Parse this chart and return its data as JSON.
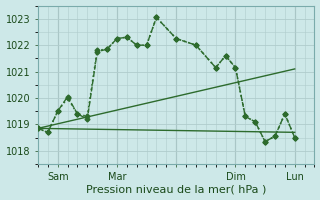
{
  "background_color": "#cde8e8",
  "grid_color": "#b0cccc",
  "line_color": "#2d6b2d",
  "xlim": [
    0,
    14
  ],
  "ylim": [
    1017.5,
    1023.5
  ],
  "yticks": [
    1018,
    1019,
    1020,
    1021,
    1022,
    1023
  ],
  "xtick_positions": [
    1,
    4,
    7,
    10,
    13
  ],
  "xtick_labels": [
    "Sam",
    "Mar",
    "",
    "Dim",
    "Lun"
  ],
  "xlabel": "Pression niveau de la mer( hPa )",
  "series": [
    {
      "x": [
        0.0,
        0.5,
        1.0,
        1.5,
        2.0,
        2.5,
        3.0,
        3.5,
        4.0,
        4.5,
        5.0,
        5.5,
        6.0,
        7.0,
        8.0,
        9.0,
        9.5,
        10.0,
        10.5,
        11.0,
        11.5,
        12.0,
        12.5,
        13.0
      ],
      "y": [
        1018.85,
        1018.7,
        1019.5,
        1020.0,
        1019.4,
        1019.3,
        1021.8,
        1021.85,
        1022.25,
        1022.3,
        1022.0,
        1022.0,
        1023.05,
        1022.25,
        1022.0,
        1021.15,
        1021.6,
        1021.15,
        1019.3,
        1019.1,
        1018.35,
        1018.55,
        1019.4,
        1018.5
      ],
      "style": ":",
      "marker": "D",
      "markersize": 2.5,
      "linewidth": 1.2
    },
    {
      "x": [
        0.0,
        0.5,
        1.0,
        1.5,
        2.0,
        2.5,
        3.0,
        3.5,
        4.0,
        4.5,
        5.0,
        5.5,
        6.0,
        7.0,
        8.0,
        9.0,
        9.5,
        10.0,
        10.5,
        11.0,
        11.5,
        12.0,
        12.5,
        13.0
      ],
      "y": [
        1018.85,
        1018.7,
        1019.5,
        1020.05,
        1019.4,
        1019.2,
        1021.75,
        1021.85,
        1022.25,
        1022.3,
        1022.0,
        1022.0,
        1023.05,
        1022.25,
        1022.0,
        1021.15,
        1021.6,
        1021.15,
        1019.3,
        1019.1,
        1018.35,
        1018.55,
        1019.4,
        1018.5
      ],
      "style": "--",
      "marker": "D",
      "markersize": 2.5,
      "linewidth": 1.0
    },
    {
      "x": [
        0.0,
        13.0
      ],
      "y": [
        1018.85,
        1021.1
      ],
      "style": "-",
      "marker": null,
      "markersize": 0,
      "linewidth": 1.0
    },
    {
      "x": [
        0.0,
        13.0
      ],
      "y": [
        1018.85,
        1018.7
      ],
      "style": "-",
      "marker": null,
      "markersize": 0,
      "linewidth": 1.0
    }
  ],
  "xlabel_fontsize": 8,
  "tick_fontsize": 7,
  "figsize": [
    3.2,
    2.0
  ],
  "dpi": 100
}
